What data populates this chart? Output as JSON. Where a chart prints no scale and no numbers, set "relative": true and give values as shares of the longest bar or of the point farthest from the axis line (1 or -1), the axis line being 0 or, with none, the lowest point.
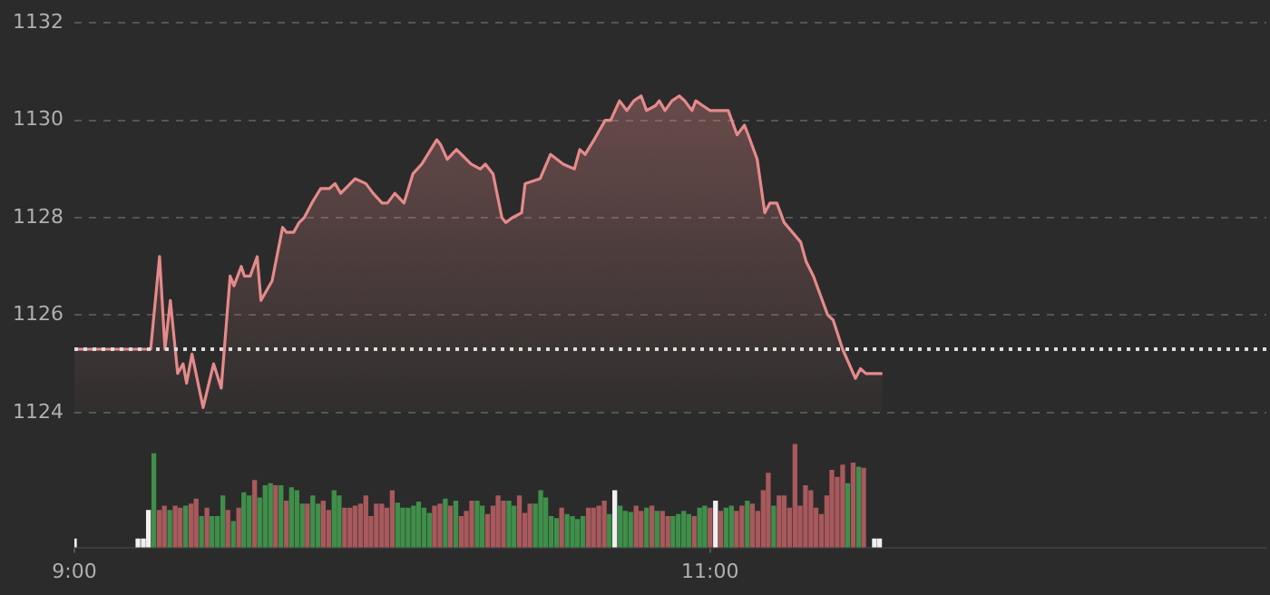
{
  "chart_data": [
    {
      "type": "area",
      "color": "#e58a8a",
      "marker": "none",
      "line_style": "solid",
      "grid": "y",
      "tick_labels": "y",
      "x": [
        9,
        9.24,
        9.268,
        9.285,
        9.302,
        9.325,
        9.342,
        9.353,
        9.37,
        9.405,
        9.438,
        9.462,
        9.49,
        9.502,
        9.525,
        9.535,
        9.553,
        9.575,
        9.587,
        9.622,
        9.655,
        9.667,
        9.69,
        9.707,
        9.723,
        9.747,
        9.775,
        9.803,
        9.82,
        9.838,
        9.883,
        9.917,
        9.94,
        9.968,
        9.985,
        10.008,
        10.037,
        10.065,
        10.093,
        10.14,
        10.152,
        10.173,
        10.202,
        10.248,
        10.277,
        10.293,
        10.317,
        10.345,
        10.357,
        10.378,
        10.407,
        10.418,
        10.465,
        10.498,
        10.538,
        10.573,
        10.59,
        10.607,
        10.635,
        10.67,
        10.687,
        10.715,
        10.738,
        10.76,
        10.783,
        10.8,
        10.828,
        10.84,
        10.858,
        10.88,
        10.903,
        10.92,
        10.943,
        10.955,
        10.977,
        11,
        11.017,
        11.057,
        11.085,
        11.108,
        11.12,
        11.148,
        11.172,
        11.188,
        11.21,
        11.233,
        11.285,
        11.302,
        11.325,
        11.37,
        11.387,
        11.417,
        11.457,
        11.473,
        11.49,
        11.542
      ],
      "values": [
        1125.3,
        1125.3,
        1127.2,
        1125.3,
        1126.3,
        1124.8,
        1125.0,
        1124.6,
        1125.2,
        1124.1,
        1125.0,
        1124.5,
        1126.8,
        1126.6,
        1127.0,
        1126.8,
        1126.8,
        1127.2,
        1126.3,
        1126.7,
        1127.8,
        1127.7,
        1127.7,
        1127.9,
        1128.0,
        1128.3,
        1128.6,
        1128.6,
        1128.7,
        1128.5,
        1128.8,
        1128.7,
        1128.5,
        1128.3,
        1128.3,
        1128.5,
        1128.3,
        1128.9,
        1129.1,
        1129.6,
        1129.5,
        1129.2,
        1129.4,
        1129.1,
        1129.0,
        1129.1,
        1128.9,
        1128.0,
        1127.9,
        1128.0,
        1128.1,
        1128.7,
        1128.8,
        1129.3,
        1129.1,
        1129.0,
        1129.4,
        1129.3,
        1129.6,
        1130.0,
        1130.0,
        1130.4,
        1130.2,
        1130.4,
        1130.5,
        1130.2,
        1130.3,
        1130.4,
        1130.2,
        1130.4,
        1130.5,
        1130.4,
        1130.2,
        1130.4,
        1130.3,
        1130.2,
        1130.2,
        1130.2,
        1129.7,
        1129.9,
        1129.7,
        1129.2,
        1128.1,
        1128.3,
        1128.3,
        1127.9,
        1127.5,
        1127.1,
        1126.8,
        1126.0,
        1125.9,
        1125.3,
        1124.7,
        1124.9,
        1124.8,
        1124.8
      ],
      "xlim": [
        9,
        12.75
      ],
      "ylim": [
        1124,
        1132
      ],
      "yticks": [
        1124,
        1126,
        1128,
        1130,
        1132
      ],
      "ref_lines": [
        {
          "axis": "y",
          "value": 1125.3,
          "color": "#dddddd",
          "line_style": "dotted"
        }
      ]
    },
    {
      "type": "bar",
      "relative": true,
      "tick_labels": "x",
      "xlim": [
        9,
        12.75
      ],
      "xticks": [
        {
          "value": 9,
          "label": "9:00"
        },
        {
          "value": 11,
          "label": "11:00"
        }
      ],
      "x": [
        9,
        9.2,
        9.217,
        9.233,
        9.25,
        9.267,
        9.283,
        9.3,
        9.317,
        9.333,
        9.35,
        9.367,
        9.383,
        9.4,
        9.417,
        9.433,
        9.45,
        9.467,
        9.483,
        9.5,
        9.517,
        9.533,
        9.55,
        9.567,
        9.583,
        9.6,
        9.617,
        9.633,
        9.65,
        9.667,
        9.683,
        9.7,
        9.717,
        9.733,
        9.75,
        9.767,
        9.783,
        9.8,
        9.817,
        9.833,
        9.85,
        9.867,
        9.883,
        9.9,
        9.917,
        9.933,
        9.95,
        9.967,
        9.983,
        10,
        10.017,
        10.033,
        10.05,
        10.067,
        10.083,
        10.1,
        10.117,
        10.133,
        10.15,
        10.167,
        10.183,
        10.2,
        10.217,
        10.233,
        10.25,
        10.267,
        10.283,
        10.3,
        10.317,
        10.333,
        10.35,
        10.367,
        10.383,
        10.4,
        10.417,
        10.433,
        10.45,
        10.467,
        10.483,
        10.5,
        10.517,
        10.533,
        10.55,
        10.567,
        10.583,
        10.6,
        10.617,
        10.633,
        10.65,
        10.667,
        10.683,
        10.7,
        10.717,
        10.733,
        10.75,
        10.767,
        10.783,
        10.8,
        10.817,
        10.833,
        10.85,
        10.867,
        10.883,
        10.9,
        10.917,
        10.933,
        10.95,
        10.967,
        10.983,
        11,
        11.017,
        11.033,
        11.05,
        11.067,
        11.083,
        11.1,
        11.117,
        11.133,
        11.15,
        11.167,
        11.183,
        11.2,
        11.217,
        11.233,
        11.25,
        11.267,
        11.283,
        11.3,
        11.317,
        11.333,
        11.35,
        11.367,
        11.383,
        11.4,
        11.417,
        11.433,
        11.45,
        11.467,
        11.483,
        11.517,
        11.533
      ],
      "values": [
        0.08,
        0.08,
        0.08,
        0.36,
        0.91,
        0.36,
        0.4,
        0.36,
        0.4,
        0.38,
        0.4,
        0.42,
        0.47,
        0.3,
        0.38,
        0.3,
        0.3,
        0.5,
        0.36,
        0.25,
        0.38,
        0.53,
        0.5,
        0.65,
        0.48,
        0.6,
        0.62,
        0.6,
        0.6,
        0.45,
        0.58,
        0.55,
        0.42,
        0.42,
        0.5,
        0.42,
        0.45,
        0.36,
        0.55,
        0.5,
        0.38,
        0.38,
        0.4,
        0.42,
        0.5,
        0.3,
        0.42,
        0.42,
        0.38,
        0.55,
        0.43,
        0.38,
        0.38,
        0.4,
        0.44,
        0.38,
        0.33,
        0.4,
        0.42,
        0.47,
        0.4,
        0.45,
        0.3,
        0.35,
        0.45,
        0.45,
        0.4,
        0.32,
        0.4,
        0.5,
        0.45,
        0.45,
        0.4,
        0.5,
        0.33,
        0.42,
        0.42,
        0.55,
        0.48,
        0.3,
        0.28,
        0.38,
        0.32,
        0.3,
        0.27,
        0.3,
        0.38,
        0.38,
        0.4,
        0.45,
        0.32,
        0.55,
        0.4,
        0.35,
        0.34,
        0.4,
        0.35,
        0.38,
        0.4,
        0.35,
        0.35,
        0.3,
        0.3,
        0.32,
        0.35,
        0.32,
        0.3,
        0.38,
        0.4,
        0.38,
        0.45,
        0.35,
        0.38,
        0.4,
        0.35,
        0.4,
        0.45,
        0.42,
        0.35,
        0.55,
        0.72,
        0.4,
        0.5,
        0.5,
        0.38,
        1,
        0.4,
        0.6,
        0.55,
        0.38,
        0.32,
        0.5,
        0.75,
        0.68,
        0.8,
        0.62,
        0.82,
        0.78,
        0.77,
        0.08,
        0.08
      ],
      "colors": [
        "#f0f0f0",
        "#f0f0f0",
        "#f0f0f0",
        "#f0f0f0",
        "#3f8f4a",
        "#a8595c",
        "#a8595c",
        "#3f8f4a",
        "#a8595c",
        "#a8595c",
        "#3f8f4a",
        "#a8595c",
        "#a8595c",
        "#3f8f4a",
        "#a8595c",
        "#3f8f4a",
        "#3f8f4a",
        "#3f8f4a",
        "#a8595c",
        "#3f8f4a",
        "#a8595c",
        "#3f8f4a",
        "#3f8f4a",
        "#a8595c",
        "#3f8f4a",
        "#3f8f4a",
        "#3f8f4a",
        "#a8595c",
        "#3f8f4a",
        "#a8595c",
        "#3f8f4a",
        "#3f8f4a",
        "#3f8f4a",
        "#a8595c",
        "#3f8f4a",
        "#3f8f4a",
        "#a8595c",
        "#a8595c",
        "#3f8f4a",
        "#3f8f4a",
        "#a8595c",
        "#a8595c",
        "#a8595c",
        "#a8595c",
        "#a8595c",
        "#a8595c",
        "#a8595c",
        "#a8595c",
        "#a8595c",
        "#a8595c",
        "#3f8f4a",
        "#3f8f4a",
        "#3f8f4a",
        "#3f8f4a",
        "#3f8f4a",
        "#3f8f4a",
        "#3f8f4a",
        "#a8595c",
        "#a8595c",
        "#3f8f4a",
        "#a8595c",
        "#3f8f4a",
        "#a8595c",
        "#a8595c",
        "#a8595c",
        "#3f8f4a",
        "#3f8f4a",
        "#a8595c",
        "#a8595c",
        "#a8595c",
        "#a8595c",
        "#3f8f4a",
        "#3f8f4a",
        "#a8595c",
        "#a8595c",
        "#a8595c",
        "#3f8f4a",
        "#3f8f4a",
        "#3f8f4a",
        "#3f8f4a",
        "#3f8f4a",
        "#a8595c",
        "#3f8f4a",
        "#3f8f4a",
        "#3f8f4a",
        "#3f8f4a",
        "#a8595c",
        "#a8595c",
        "#a8595c",
        "#a8595c",
        "#3f8f4a",
        "#f0f0f0",
        "#3f8f4a",
        "#3f8f4a",
        "#3f8f4a",
        "#a8595c",
        "#a8595c",
        "#3f8f4a",
        "#a8595c",
        "#3f8f4a",
        "#a8595c",
        "#a8595c",
        "#3f8f4a",
        "#3f8f4a",
        "#3f8f4a",
        "#3f8f4a",
        "#a8595c",
        "#3f8f4a",
        "#3f8f4a",
        "#a8595c",
        "#f0f0f0",
        "#a8595c",
        "#3f8f4a",
        "#3f8f4a",
        "#a8595c",
        "#a8595c",
        "#3f8f4a",
        "#a8595c",
        "#a8595c",
        "#a8595c",
        "#a8595c",
        "#3f8f4a",
        "#a8595c",
        "#a8595c",
        "#a8595c",
        "#a8595c",
        "#a8595c",
        "#a8595c",
        "#a8595c",
        "#a8595c",
        "#a8595c",
        "#a8595c",
        "#a8595c",
        "#a8595c",
        "#a8595c",
        "#3f8f4a",
        "#a8595c",
        "#3f8f4a",
        "#a8595c",
        "#f0f0f0",
        "#f0f0f0"
      ]
    }
  ]
}
